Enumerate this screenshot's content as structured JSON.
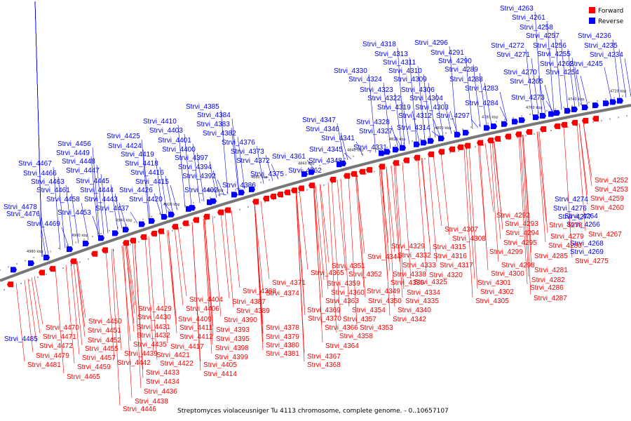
{
  "caption": "Streptomyces violaceusniger Tu 4113 chromosome, complete genome. - 0..10657107",
  "legend": [
    {
      "label": "Forward",
      "color": "#ff0000"
    },
    {
      "label": "Reverse",
      "color": "#0000ff"
    }
  ],
  "colors": {
    "forward": "#ff0000",
    "reverse": "#0000ff",
    "backbone": "#808080"
  },
  "ticks": [
    "4720 kbp",
    "4740 kbp",
    "4760 kbp",
    "4780 kbp",
    "4800 kbp",
    "4820 kbp",
    "4840 kbp",
    "4860 kbp",
    "4880 kbp",
    "4900 kbp",
    "4920 kbp",
    "4940 kbp",
    "4960 kbp",
    "4980 kbp"
  ],
  "reverse_labels": [
    "Strvi_4263",
    "Strvi_4261",
    "Strvi_4258",
    "Strvi_4257",
    "Strvi_4256",
    "Strvi_4236",
    "Strvi_4235",
    "Strvi_4272",
    "Strvi_4255",
    "Strvi_4234",
    "Strvi_4271",
    "Strvi_4262",
    "Strvi_4245",
    "Strvi_4270",
    "Strvi_4254",
    "Strvi_4265",
    "Strvi_4273",
    "Strvi_4296",
    "Strvi_4318",
    "Strvi_4291",
    "Strvi_4313",
    "Strvi_4290",
    "Strvi_4311",
    "Strvi_4289",
    "Strvi_4330",
    "Strvi_4310",
    "Strvi_4324",
    "Strvi_4309",
    "Strvi_4288",
    "Strvi_4323",
    "Strvi_4306",
    "Strvi_4283",
    "Strvi_4322",
    "Strvi_4304",
    "Strvi_4284",
    "Strvi_4319",
    "Strvi_4303",
    "Strvi_4297",
    "Strvi_4312",
    "Strvi_4328",
    "Strvi_4314",
    "Strvi_4327",
    "Strvi_4331",
    "Strvi_4385",
    "Strvi_4384",
    "Strvi_4410",
    "Strvi_4383",
    "Strvi_4403",
    "Strvi_4382",
    "Strvi_4425",
    "Strvi_4401",
    "Strvi_4376",
    "Strvi_4424",
    "Strvi_4400",
    "Strvi_4373",
    "Strvi_4419",
    "Strvi_4397",
    "Strvi_4372",
    "Strvi_4418",
    "Strvi_4394",
    "Strvi_4375",
    "Strvi_4416",
    "Strvi_4392",
    "Strvi_4415",
    "Strvi_4386",
    "Strvi_4426",
    "Strvi_4402",
    "Strvi_4420",
    "Strvi_4437",
    "Strvi_4347",
    "Strvi_4346",
    "Strvi_4341",
    "Strvi_4361",
    "Strvi_4345",
    "Strvi_4348",
    "Strvi_4362",
    "Strvi_4456",
    "Strvi_4449",
    "Strvi_4467",
    "Strvi_4448",
    "Strvi_4466",
    "Strvi_4447",
    "Strvi_4463",
    "Strvi_4445",
    "Strvi_4461",
    "Strvi_4444",
    "Strvi_4458",
    "Strvi_4443",
    "Strvi_4478",
    "Strvi_4453",
    "Strvi_4476",
    "Strvi_4469",
    "Strvi_4485",
    "Strvi_4274",
    "Strvi_4276",
    "Strvi_4277",
    "Strvi_4264",
    "Strvi_4266",
    "Strvi_4268",
    "Strvi_4269"
  ],
  "forward_labels": [
    "Strvi_4252",
    "Strvi_4253",
    "Strvi_4259",
    "Strvi_4260",
    "Strvi_4267",
    "Strvi_4275",
    "Strvi_4278",
    "Strvi_4279",
    "Strvi_4280",
    "Strvi_4285",
    "Strvi_4281",
    "Strvi_4282",
    "Strvi_4286",
    "Strvi_4287",
    "Strvi_4292",
    "Strvi_4293",
    "Strvi_4294",
    "Strvi_4295",
    "Strvi_4299",
    "Strvi_4298",
    "Strvi_4300",
    "Strvi_4301",
    "Strvi_4302",
    "Strvi_4305",
    "Strvi_4307",
    "Strvi_4308",
    "Strvi_4315",
    "Strvi_4316",
    "Strvi_4317",
    "Strvi_4320",
    "Strvi_4325",
    "Strvi_4329",
    "Strvi_4332",
    "Strvi_4333",
    "Strvi_4338",
    "Strvi_4339",
    "Strvi_4334",
    "Strvi_4335",
    "Strvi_4340",
    "Strvi_4342",
    "Strvi_4344",
    "Strvi_4351",
    "Strvi_4352",
    "Strvi_4365",
    "Strvi_4371",
    "Strvi_4359",
    "Strvi_4360",
    "Strvi_4349",
    "Strvi_4350",
    "Strvi_4354",
    "Strvi_4357",
    "Strvi_4353",
    "Strvi_4358",
    "Strvi_4364",
    "Strvi_4367",
    "Strvi_4368",
    "Strvi_4374",
    "Strvi_4363",
    "Strvi_4369",
    "Strvi_4370",
    "Strvi_4366",
    "Strvi_4378",
    "Strvi_4379",
    "Strvi_4380",
    "Strvi_4381",
    "Strvi_4388",
    "Strvi_4387",
    "Strvi_4389",
    "Strvi_4390",
    "Strvi_4393",
    "Strvi_4395",
    "Strvi_4398",
    "Strvi_4399",
    "Strvi_4404",
    "Strvi_4406",
    "Strvi_4409",
    "Strvi_4411",
    "Strvi_4412",
    "Strvi_4417",
    "Strvi_4421",
    "Strvi_4422",
    "Strvi_4414",
    "Strvi_4405",
    "Strvi_4429",
    "Strvi_4430",
    "Strvi_4431",
    "Strvi_4432",
    "Strvi_4435",
    "Strvi_4439",
    "Strvi_4442",
    "Strvi_4433",
    "Strvi_4434",
    "Strvi_4436",
    "Strvi_4438",
    "Strvi_4446",
    "Strvi_4450",
    "Strvi_4451",
    "Strvi_4452",
    "Strvi_4455",
    "Strvi_4457",
    "Strvi_4459",
    "Strvi_4465",
    "Strvi_4470",
    "Strvi_4471",
    "Strvi_4472",
    "Strvi_4479",
    "Strvi_4481"
  ]
}
